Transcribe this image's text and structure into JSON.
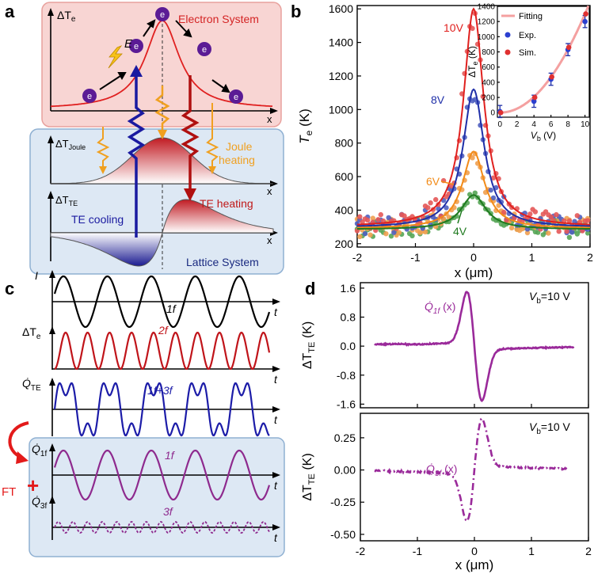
{
  "panel_labels": {
    "a": "a",
    "b": "b",
    "c": "c",
    "d": "d"
  },
  "panel_a": {
    "electron_title": "Electron System",
    "lattice_title": "Lattice System",
    "dTe_label": "ΔT",
    "dTe_sub": "e",
    "dT_joule_label": "ΔT",
    "dT_joule_sub": "Joule",
    "dT_te_label": "ΔT",
    "dT_te_sub": "TE",
    "x_label": "x",
    "electron_symbol": "e",
    "field_label": "E",
    "joule_heating": "Joule\nheating",
    "te_heating": "TE heating",
    "te_cooling": "TE cooling",
    "colors": {
      "electron_bg": "#f8d5d3",
      "electron_border": "#e8a19d",
      "lattice_bg": "#dde8f4",
      "lattice_border": "#8fb0d2",
      "red": "#d32020",
      "blue": "#1a1aa0",
      "orange": "#f0a020",
      "darkred": "#b01010",
      "purple": "#5b1b95"
    }
  },
  "chart_data": [
    {
      "id": "b-main",
      "type": "scatter+line",
      "xlabel": "x (μm)",
      "ylabel": "T",
      "ylabel_sub": "e",
      "ylabel_unit": "(K)",
      "xlim": [
        -2,
        2
      ],
      "ylim": [
        180,
        1620
      ],
      "xticks": [
        -2,
        -1,
        0,
        1,
        2
      ],
      "xtick_labels": [
        "-2",
        "-1",
        "0",
        "1",
        "2"
      ],
      "yticks": [
        200,
        400,
        600,
        800,
        1000,
        1200,
        1400,
        1600
      ],
      "ytick_labels": [
        "200",
        "400",
        "600",
        "800",
        "1000",
        "1200",
        "1400",
        "1600"
      ],
      "series": [
        {
          "name": "10V",
          "color": "#e0201e",
          "dot_color": "#e45858",
          "peak": 1600,
          "base": 300,
          "width": 0.21
        },
        {
          "name": "8V",
          "color": "#1f2fa8",
          "dot_color": "#4f5fc0",
          "peak": 1120,
          "base": 295,
          "width": 0.22
        },
        {
          "name": "6V",
          "color": "#f28b18",
          "dot_color": "#f0a050",
          "peak": 750,
          "base": 290,
          "width": 0.23
        },
        {
          "name": "4V",
          "color": "#1f7a1f",
          "dot_color": "#55a555",
          "peak": 490,
          "base": 285,
          "width": 0.26
        }
      ],
      "series_labels": [
        "10V",
        "8V",
        "6V",
        "4V"
      ]
    },
    {
      "id": "b-inset",
      "type": "scatter+line",
      "xlabel": "V",
      "xlabel_sub": "b",
      "xlabel_unit": "(V)",
      "ylabel": "ΔT",
      "ylabel_sub": "e",
      "ylabel_unit": "(K)",
      "xlim": [
        -0.3,
        10.5
      ],
      "ylim": [
        -60,
        1400
      ],
      "xticks": [
        0,
        2,
        4,
        6,
        8,
        10
      ],
      "xtick_labels": [
        "0",
        "2",
        "4",
        "6",
        "8",
        "10"
      ],
      "yticks": [
        0,
        200,
        400,
        600,
        800,
        1000,
        1200,
        1400
      ],
      "ytick_labels": [
        "0",
        "200",
        "400",
        "600",
        "800",
        "1000",
        "1200",
        "1400"
      ],
      "legend": [
        "Fitting",
        "Exp.",
        "Sim."
      ],
      "exp": [
        {
          "x": 0,
          "y": 15,
          "err": 80
        },
        {
          "x": 4,
          "y": 150,
          "err": 80
        },
        {
          "x": 6,
          "y": 440,
          "err": 80
        },
        {
          "x": 8,
          "y": 830,
          "err": 80
        },
        {
          "x": 10,
          "y": 1200,
          "err": 80
        }
      ],
      "sim": [
        {
          "x": 0,
          "y": 0
        },
        {
          "x": 4,
          "y": 200
        },
        {
          "x": 6,
          "y": 470
        },
        {
          "x": 8,
          "y": 860
        },
        {
          "x": 10,
          "y": 1300
        }
      ],
      "fit_coeff": 13
    },
    {
      "id": "c",
      "type": "line",
      "rows": [
        {
          "name": "I",
          "label": "1f",
          "color": "#000000",
          "kind": "sin1"
        },
        {
          "name": "ΔT",
          "sub": "e",
          "label": "2f",
          "color": "#c0141a",
          "kind": "sin2"
        },
        {
          "name": "Q̇",
          "sub": "TE",
          "label": "1f+3f",
          "color": "#1c1ca8",
          "kind": "sin13"
        },
        {
          "name": "Q̇",
          "sub": "1f",
          "label": "1f",
          "color": "#8e2a8e",
          "kind": "sin1"
        },
        {
          "name": "Q̇",
          "sub": "3f",
          "label": "3f",
          "color": "#8e2a8e",
          "kind": "sin3"
        }
      ],
      "t_label": "t",
      "ft_label": "FT",
      "plus_label": "+"
    },
    {
      "id": "d-top",
      "type": "line",
      "xlim": [
        -2,
        2
      ],
      "ylim": [
        -1.7,
        1.75
      ],
      "yticks": [
        1.6,
        0.8,
        0.0,
        -0.8,
        -1.6
      ],
      "ytick_labels": [
        "1.6",
        "0.8",
        "0.0",
        "-0.8",
        "-1.6"
      ],
      "ylabel": "ΔT",
      "ylabel_sub": "TE",
      "ylabel_unit": "(K)",
      "curve_label": "Q̇",
      "curve_sub": "1f",
      "curve_arg": "(x)",
      "vb_label": "V",
      "vb_sub": "b",
      "vb_value": "=10 V",
      "color": "#9a2a9a",
      "amplitude": 1.52,
      "x_range": [
        -1.75,
        1.75
      ]
    },
    {
      "id": "d-bottom",
      "type": "line",
      "style": "dash-dot",
      "xlim": [
        -2,
        2
      ],
      "ylim": [
        -0.55,
        0.44
      ],
      "yticks": [
        0.25,
        0.0,
        -0.25,
        -0.5
      ],
      "ytick_labels": [
        "0.25",
        "0.00",
        "-0.25",
        "-0.50"
      ],
      "xticks": [
        -2,
        -1,
        0,
        1,
        2
      ],
      "xtick_labels": [
        "-2",
        "-1",
        "0",
        "1",
        "2"
      ],
      "xlabel": "x (μm)",
      "ylabel": "ΔT",
      "ylabel_sub": "TE",
      "ylabel_unit": "(K)",
      "curve_label": "Q̇",
      "curve_sub": "3f",
      "curve_arg": "(x)",
      "vb_label": "V",
      "vb_sub": "b",
      "vb_value": "=10 V",
      "color": "#9a2a9a",
      "amplitude": 0.38,
      "x_range": [
        -1.75,
        1.65
      ]
    }
  ]
}
